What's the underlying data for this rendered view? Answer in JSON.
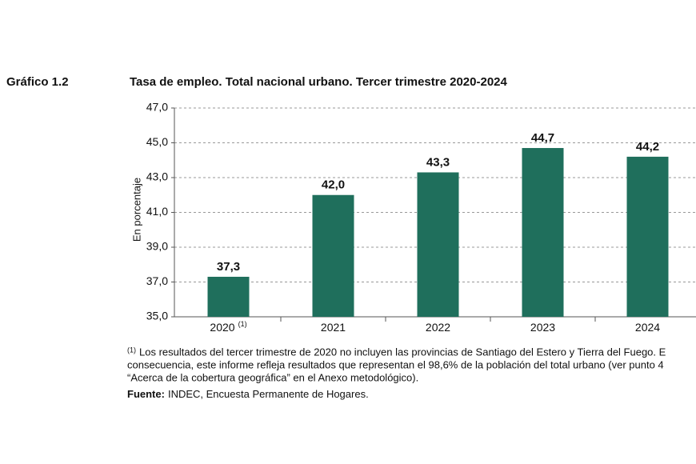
{
  "figure_label": "Gráfico 1.2",
  "chart_data": {
    "type": "bar",
    "title": "Tasa de empleo. Total nacional urbano. Tercer trimestre 2020-2024",
    "y_label": "En porcentaje",
    "categories": [
      "2020",
      "2021",
      "2022",
      "2023",
      "2024"
    ],
    "category_notes": [
      "(1)",
      null,
      null,
      null,
      null
    ],
    "values": [
      37.3,
      42.0,
      43.3,
      44.7,
      44.2
    ],
    "value_labels": [
      "37,3",
      "42,0",
      "43,3",
      "44,7",
      "44,2"
    ],
    "color": "#1f6f5c",
    "ylim": [
      35,
      47
    ],
    "yticks": [
      {
        "value": 35,
        "label": "35,0"
      },
      {
        "value": 37,
        "label": "37,0"
      },
      {
        "value": 39,
        "label": "39,0"
      },
      {
        "value": 41,
        "label": "41,0"
      },
      {
        "value": 43,
        "label": "43,0"
      },
      {
        "value": 45,
        "label": "45,0"
      },
      {
        "value": 47,
        "label": "47,0"
      }
    ],
    "grid": true
  },
  "notes": {
    "mark": "(1)",
    "lines": [
      "Los resultados del tercer trimestre de 2020 no incluyen las provincias de Santiago del Estero y Tierra del Fuego. E",
      "consecuencia, este informe refleja resultados que representan el 98,6% de la población del total urbano (ver punto 4",
      "“Acerca de la cobertura geográfica” en el Anexo metodológico)."
    ]
  },
  "source": {
    "label": "Fuente:",
    "text": "INDEC, Encuesta Permanente de Hogares."
  }
}
